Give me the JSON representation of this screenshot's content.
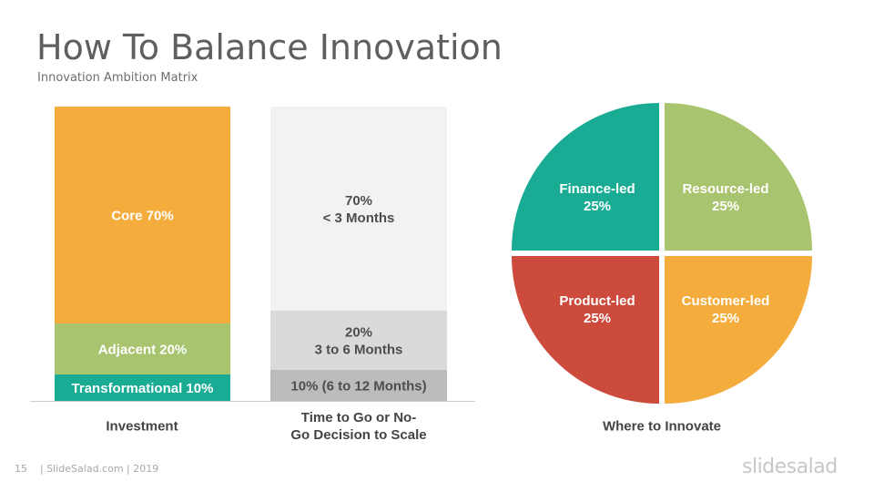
{
  "slide": {
    "title": "How To Balance Innovation",
    "subtitle": "Innovation Ambition Matrix",
    "footer_page": "15",
    "footer_text": "| SlideSalad.com | 2019",
    "brand": "slidesalad"
  },
  "colors": {
    "orange": "#f4ad3c",
    "green": "#a8c46f",
    "teal": "#1aab95",
    "red": "#cd4b3d",
    "light_gray": "#f2f2f2",
    "mid_gray": "#dadada",
    "dark_gray": "#bcbcbc"
  },
  "chart_data": [
    {
      "type": "bar",
      "stacked": true,
      "xlabel": "Investment",
      "unit": "%",
      "segments": [
        {
          "label": "Transformational 10%",
          "value": 10,
          "color": "#1aab95"
        },
        {
          "label": "Adjacent 20%",
          "value": 20,
          "color": "#a8c46f"
        },
        {
          "label": "Core 70%",
          "value": 70,
          "color": "#f4ad3c"
        }
      ]
    },
    {
      "type": "bar",
      "stacked": true,
      "xlabel": "Time to Go or No-\nGo Decision to Scale",
      "unit": "%",
      "segments": [
        {
          "label": "10% (6 to 12 Months)",
          "value": 10,
          "color": "#bcbcbc"
        },
        {
          "label": "20%\n3 to 6 Months",
          "value": 20,
          "color": "#dadada"
        },
        {
          "label": "70%\n< 3 Months",
          "value": 70,
          "color": "#f2f2f2"
        }
      ]
    },
    {
      "type": "pie",
      "xlabel": "Where to Innovate",
      "slices": [
        {
          "label": "Finance-led\n25%",
          "value": 25,
          "color": "#1aab95"
        },
        {
          "label": "Resource-led\n25%",
          "value": 25,
          "color": "#a8c46f"
        },
        {
          "label": "Customer-led\n25%",
          "value": 25,
          "color": "#f4ad3c"
        },
        {
          "label": "Product-led\n25%",
          "value": 25,
          "color": "#cd4b3d"
        }
      ]
    }
  ]
}
